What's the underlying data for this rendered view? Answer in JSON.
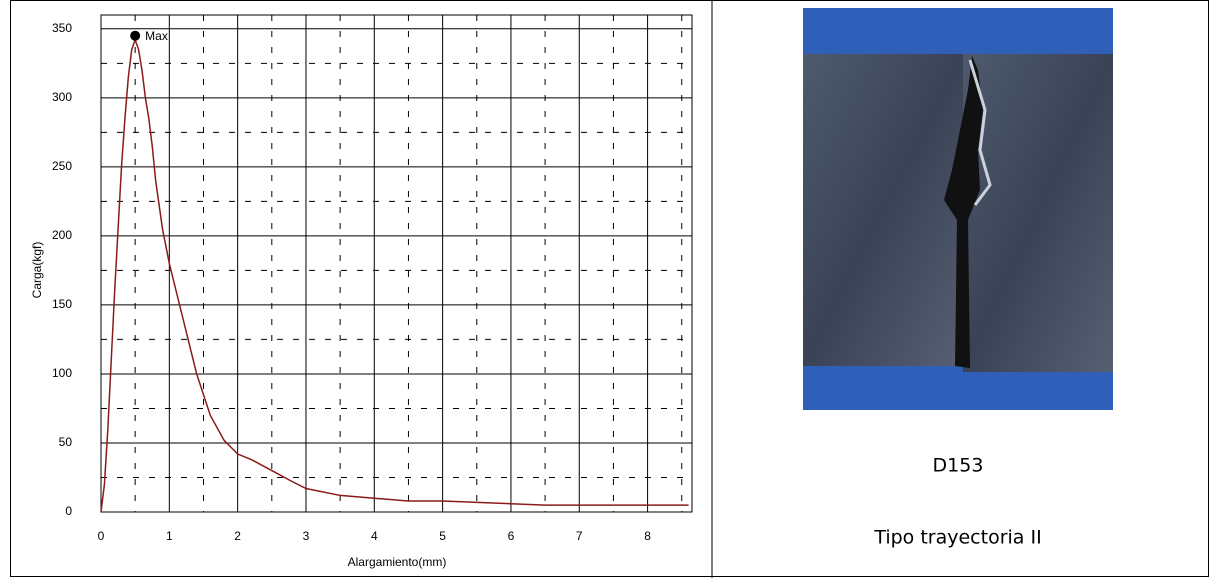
{
  "chart_data": {
    "type": "line",
    "x_label": "Alargamiento(mm)",
    "y_label": "Carga(kgf)",
    "xlim": [
      0,
      8.65
    ],
    "ylim": [
      0,
      360
    ],
    "xticks": [
      0,
      1,
      2,
      3,
      4,
      5,
      6,
      7,
      8
    ],
    "yticks": [
      0,
      50,
      100,
      150,
      200,
      250,
      300,
      350
    ],
    "grid": true,
    "minor_grid": true,
    "series": [
      {
        "color": "#8b1a1a",
        "x": [
          0,
          0.05,
          0.1,
          0.15,
          0.2,
          0.25,
          0.3,
          0.35,
          0.4,
          0.45,
          0.5,
          0.55,
          0.6,
          0.65,
          0.7,
          0.75,
          0.8,
          0.9,
          1.0,
          1.2,
          1.4,
          1.6,
          1.8,
          2.0,
          2.2,
          2.5,
          2.8,
          3.0,
          3.5,
          4.0,
          4.5,
          5.0,
          5.5,
          6.0,
          6.5,
          7.0,
          7.5,
          8.0,
          8.6
        ],
        "values": [
          0,
          20,
          60,
          110,
          160,
          205,
          250,
          285,
          315,
          335,
          342,
          335,
          320,
          300,
          285,
          265,
          240,
          205,
          180,
          140,
          100,
          70,
          52,
          42,
          38,
          30,
          22,
          17,
          12,
          10,
          8,
          8,
          7,
          6,
          5,
          5,
          5,
          5,
          5
        ]
      }
    ],
    "annotations": [
      {
        "text": "Max",
        "x": 0.5,
        "y": 345
      }
    ]
  },
  "figure": {
    "label": "D153",
    "caption": "Tipo trayectoria II"
  }
}
